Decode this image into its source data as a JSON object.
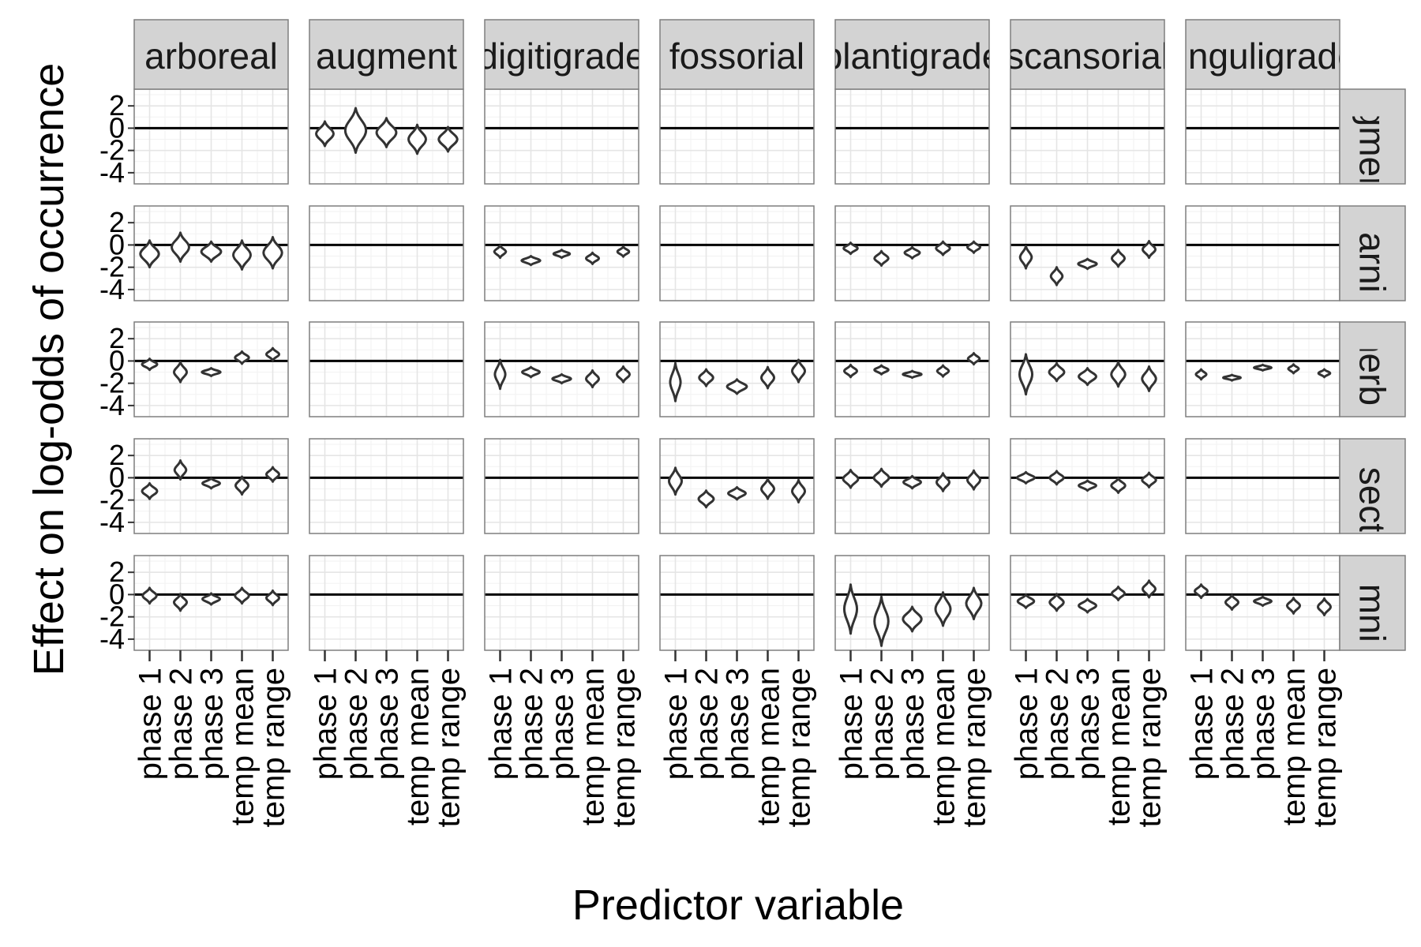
{
  "chart_data": {
    "type": "violin",
    "title": "",
    "xlabel": "Predictor variable",
    "ylabel": "Effect on log-odds of occurrence",
    "ylim": [
      -5,
      3.5
    ],
    "y_ticks": [
      2,
      0,
      -2,
      -4
    ],
    "y_tick_labels": [
      "2",
      "0",
      "-2",
      "-4"
    ],
    "x_categories": [
      "phase 1",
      "phase 2",
      "phase 3",
      "temp mean",
      "temp range"
    ],
    "columns": [
      "arboreal",
      "augment",
      "digitigrade",
      "fossorial",
      "plantigrade",
      "scansorial",
      "unguligrade"
    ],
    "rows": [
      "augment",
      "carni",
      "herb",
      "insect",
      "omni"
    ],
    "zero_line": true,
    "grid": true,
    "cells": [
      [
        {
          "violins": []
        },
        {
          "violins": [
            [
              -0.5,
              1.1,
              0.75
            ],
            [
              -0.2,
              2.0,
              0.9
            ],
            [
              -0.4,
              1.3,
              0.85
            ],
            [
              -1.0,
              1.3,
              0.75
            ],
            [
              -1.0,
              1.1,
              0.8
            ]
          ]
        },
        {
          "violins": []
        },
        {
          "violins": []
        },
        {
          "violins": []
        },
        {
          "violins": []
        },
        {
          "violins": []
        }
      ],
      [
        {
          "violins": [
            [
              -0.8,
              1.2,
              0.8
            ],
            [
              -0.2,
              1.3,
              0.75
            ],
            [
              -0.6,
              0.9,
              0.85
            ],
            [
              -0.9,
              1.3,
              0.75
            ],
            [
              -0.7,
              1.4,
              0.8
            ]
          ]
        },
        {
          "violins": []
        },
        {
          "violins": [
            [
              -0.6,
              0.55,
              0.5
            ],
            [
              -1.4,
              0.4,
              0.8
            ],
            [
              -0.8,
              0.35,
              0.7
            ],
            [
              -1.2,
              0.5,
              0.55
            ],
            [
              -0.6,
              0.45,
              0.5
            ]
          ]
        },
        {
          "violins": []
        },
        {
          "violins": [
            [
              -0.3,
              0.5,
              0.6
            ],
            [
              -1.2,
              0.65,
              0.6
            ],
            [
              -0.7,
              0.5,
              0.65
            ],
            [
              -0.3,
              0.6,
              0.6
            ],
            [
              -0.2,
              0.5,
              0.55
            ]
          ]
        },
        {
          "violins": [
            [
              -1.1,
              1.0,
              0.5
            ],
            [
              -2.8,
              0.8,
              0.5
            ],
            [
              -1.7,
              0.45,
              0.8
            ],
            [
              -1.2,
              0.75,
              0.55
            ],
            [
              -0.4,
              0.75,
              0.55
            ]
          ]
        },
        {
          "violins": []
        }
      ],
      [
        {
          "violins": [
            [
              -0.3,
              0.5,
              0.65
            ],
            [
              -1.0,
              0.9,
              0.55
            ],
            [
              -1.0,
              0.35,
              0.8
            ],
            [
              0.3,
              0.55,
              0.6
            ],
            [
              0.6,
              0.55,
              0.55
            ]
          ]
        },
        {
          "violins": []
        },
        {
          "violins": [
            [
              -1.2,
              1.3,
              0.45
            ],
            [
              -1.0,
              0.45,
              0.75
            ],
            [
              -1.6,
              0.4,
              0.8
            ],
            [
              -1.6,
              0.75,
              0.55
            ],
            [
              -1.2,
              0.7,
              0.55
            ]
          ]
        },
        {
          "violins": [
            [
              -1.9,
              1.7,
              0.45
            ],
            [
              -1.5,
              0.75,
              0.6
            ],
            [
              -2.3,
              0.65,
              0.85
            ],
            [
              -1.5,
              0.95,
              0.55
            ],
            [
              -0.9,
              1.0,
              0.55
            ]
          ]
        },
        {
          "violins": [
            [
              -0.9,
              0.55,
              0.55
            ],
            [
              -0.8,
              0.4,
              0.6
            ],
            [
              -1.2,
              0.3,
              0.8
            ],
            [
              -0.9,
              0.5,
              0.5
            ],
            [
              0.2,
              0.5,
              0.5
            ]
          ]
        },
        {
          "violins": [
            [
              -1.2,
              1.8,
              0.55
            ],
            [
              -1.0,
              0.8,
              0.65
            ],
            [
              -1.4,
              0.75,
              0.75
            ],
            [
              -1.2,
              1.1,
              0.6
            ],
            [
              -1.6,
              1.1,
              0.6
            ]
          ]
        },
        {
          "violins": [
            [
              -1.2,
              0.45,
              0.45
            ],
            [
              -1.5,
              0.25,
              0.75
            ],
            [
              -0.6,
              0.25,
              0.75
            ],
            [
              -0.7,
              0.4,
              0.45
            ],
            [
              -1.1,
              0.35,
              0.5
            ]
          ]
        }
      ],
      [
        {
          "violins": [
            [
              -1.2,
              0.7,
              0.65
            ],
            [
              0.7,
              0.85,
              0.5
            ],
            [
              -0.5,
              0.45,
              0.75
            ],
            [
              -0.7,
              0.8,
              0.55
            ],
            [
              0.3,
              0.65,
              0.55
            ]
          ]
        },
        {
          "violins": []
        },
        {
          "violins": []
        },
        {
          "violins": [
            [
              -0.3,
              1.2,
              0.55
            ],
            [
              -1.9,
              0.75,
              0.65
            ],
            [
              -1.4,
              0.55,
              0.75
            ],
            [
              -1.0,
              0.9,
              0.55
            ],
            [
              -1.2,
              1.0,
              0.55
            ]
          ]
        },
        {
          "violins": [
            [
              -0.1,
              0.8,
              0.65
            ],
            [
              0.0,
              0.8,
              0.65
            ],
            [
              -0.4,
              0.55,
              0.75
            ],
            [
              -0.4,
              0.8,
              0.55
            ],
            [
              -0.2,
              0.85,
              0.55
            ]
          ]
        },
        {
          "violins": [
            [
              0.0,
              0.5,
              0.75
            ],
            [
              0.0,
              0.6,
              0.6
            ],
            [
              -0.7,
              0.45,
              0.75
            ],
            [
              -0.7,
              0.65,
              0.6
            ],
            [
              -0.2,
              0.65,
              0.6
            ]
          ]
        },
        {
          "violins": []
        }
      ],
      [
        {
          "violins": [
            [
              -0.1,
              0.7,
              0.6
            ],
            [
              -0.7,
              0.75,
              0.55
            ],
            [
              -0.4,
              0.5,
              0.75
            ],
            [
              -0.1,
              0.7,
              0.6
            ],
            [
              -0.3,
              0.65,
              0.55
            ]
          ]
        },
        {
          "violins": []
        },
        {
          "violins": []
        },
        {
          "violins": []
        },
        {
          "violins": [
            [
              -1.3,
              2.2,
              0.55
            ],
            [
              -2.4,
              2.2,
              0.6
            ],
            [
              -2.2,
              1.1,
              0.8
            ],
            [
              -1.3,
              1.5,
              0.65
            ],
            [
              -0.8,
              1.4,
              0.65
            ]
          ]
        },
        {
          "violins": [
            [
              -0.6,
              0.6,
              0.7
            ],
            [
              -0.7,
              0.75,
              0.6
            ],
            [
              -1.0,
              0.6,
              0.75
            ],
            [
              0.1,
              0.6,
              0.55
            ],
            [
              0.5,
              0.75,
              0.55
            ]
          ]
        },
        {
          "violins": [
            [
              0.3,
              0.6,
              0.55
            ],
            [
              -0.7,
              0.65,
              0.55
            ],
            [
              -0.6,
              0.4,
              0.75
            ],
            [
              -1.0,
              0.7,
              0.55
            ],
            [
              -1.1,
              0.75,
              0.55
            ]
          ]
        }
      ]
    ]
  }
}
